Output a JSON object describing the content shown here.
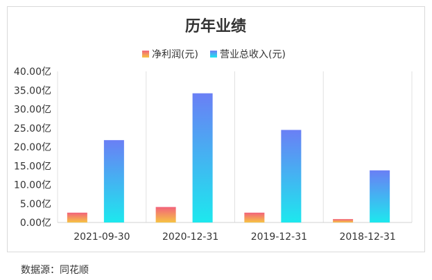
{
  "chart_data": {
    "type": "bar",
    "title": "历年业绩",
    "categories": [
      "2021-09-30",
      "2020-12-31",
      "2019-12-31",
      "2018-12-31"
    ],
    "series": [
      {
        "name": "净利润(元)",
        "values": [
          2.6,
          4.1,
          2.6,
          0.9
        ]
      },
      {
        "name": "营业总收入(元)",
        "values": [
          21.8,
          34.2,
          24.5,
          13.8
        ]
      }
    ],
    "ylim": [
      0,
      40
    ],
    "yticks": [
      0,
      5,
      10,
      15,
      20,
      25,
      30,
      35,
      40
    ],
    "ytick_labels": [
      "0.00亿",
      "5.00亿",
      "10.00亿",
      "15.00亿",
      "20.00亿",
      "25.00亿",
      "30.00亿",
      "35.00亿",
      "40.00亿"
    ],
    "legend_position": "top-center",
    "grid": "vertical category separators",
    "colors": {
      "net_profit_top": "#f2637b",
      "net_profit_bottom": "#f6c343",
      "revenue_top": "#6a7ff5",
      "revenue_bottom": "#1de8ee"
    }
  },
  "source_text": "数据源：同花顺"
}
